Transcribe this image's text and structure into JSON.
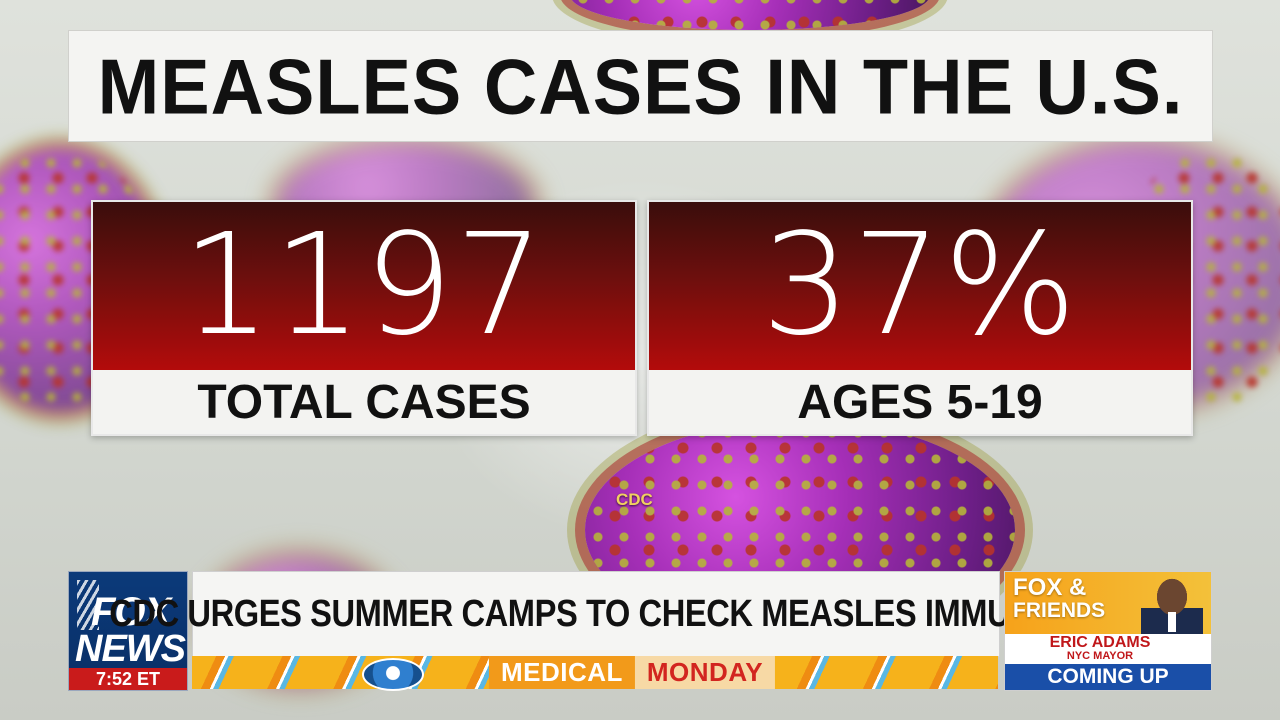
{
  "graphic": {
    "title": "MEASLES CASES IN THE U.S.",
    "stats": [
      {
        "value": "1197",
        "label": "TOTAL CASES"
      },
      {
        "value": "37%",
        "label": "AGES 5-19"
      }
    ],
    "watermark": "CDC"
  },
  "lower_third": {
    "network_logo": {
      "line1": "FOX",
      "line2": "NEWS",
      "time": "7:52 ET"
    },
    "headline": "CDC URGES SUMMER CAMPS TO CHECK MEASLES IMMUNITY",
    "segment": {
      "word1": "MEDICAL",
      "word2": "MONDAY"
    },
    "promo": {
      "show_line1": "FOX &",
      "show_line2": "FRIENDS",
      "guest_name": "ERIC ADAMS",
      "guest_title": "NYC MAYOR",
      "tag": "COMING UP"
    }
  },
  "colors": {
    "stat_red": "#b30b0b",
    "fox_blue": "#0b3a7a",
    "banner_orange": "#f29a1a",
    "promo_red": "#c0171a",
    "promo_blue": "#1a4fa8"
  }
}
